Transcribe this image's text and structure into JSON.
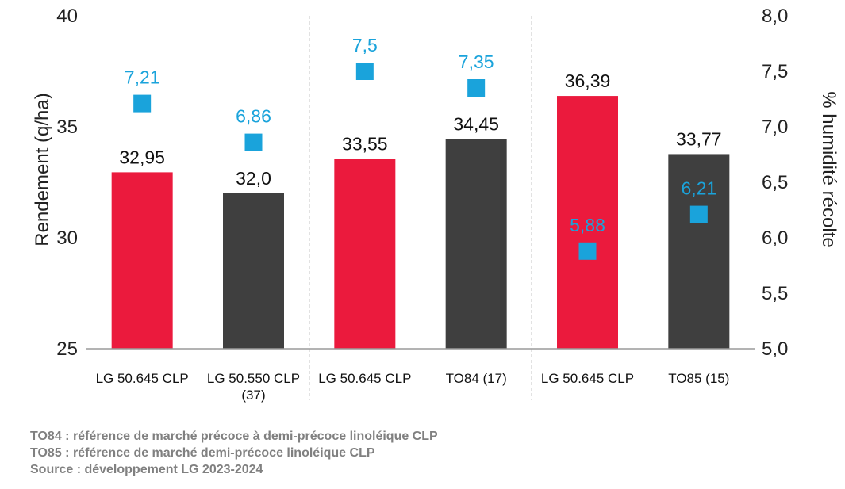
{
  "chart_data": {
    "type": "bar",
    "categories": [
      [
        "LG 50.645 CLP"
      ],
      [
        "LG 50.550 CLP",
        "(37)"
      ],
      [
        "LG 50.645 CLP"
      ],
      [
        "TO84 (17)"
      ],
      [
        "LG 50.645 CLP"
      ],
      [
        "TO85 (15)"
      ]
    ],
    "series": [
      {
        "type": "bar",
        "axis": "left",
        "values": [
          32.95,
          32.0,
          33.55,
          34.45,
          36.39,
          33.77
        ],
        "labels": [
          "32,95",
          "32,0",
          "33,55",
          "34,45",
          "36,39",
          "33,77"
        ],
        "colors": [
          "#EB1A3D",
          "#3F3F3F",
          "#EB1A3D",
          "#3F3F3F",
          "#EB1A3D",
          "#3F3F3F"
        ]
      },
      {
        "type": "scatter",
        "axis": "right",
        "marker": "square",
        "color": "#1AA3DB",
        "values": [
          7.21,
          6.86,
          7.5,
          7.35,
          5.88,
          6.21
        ],
        "labels": [
          "7,21",
          "6,86",
          "7,5",
          "7,35",
          "5,88",
          "6,21"
        ]
      }
    ],
    "ylabel": "Rendement (q/ha)",
    "y2label": "% humidité récolte",
    "ylim": [
      25,
      40
    ],
    "y2lim": [
      5.0,
      8.0
    ],
    "yticks": [
      25,
      30,
      35,
      40
    ],
    "yticklabels": [
      "25",
      "30",
      "35",
      "40"
    ],
    "y2ticks": [
      5.0,
      5.5,
      6.0,
      6.5,
      7.0,
      7.5,
      8.0
    ],
    "y2ticklabels": [
      "5,0",
      "5,5",
      "6,0",
      "6,5",
      "7,0",
      "7,5",
      "8,0"
    ],
    "group_separators_after": [
      2,
      4
    ],
    "grid": false,
    "legend": "none"
  },
  "footnotes": [
    "TO84 : référence de marché précoce à demi-précoce linoléique CLP",
    "TO85 : référence de marché demi-précoce linoléique CLP",
    "Source : développement LG 2023-2024"
  ]
}
